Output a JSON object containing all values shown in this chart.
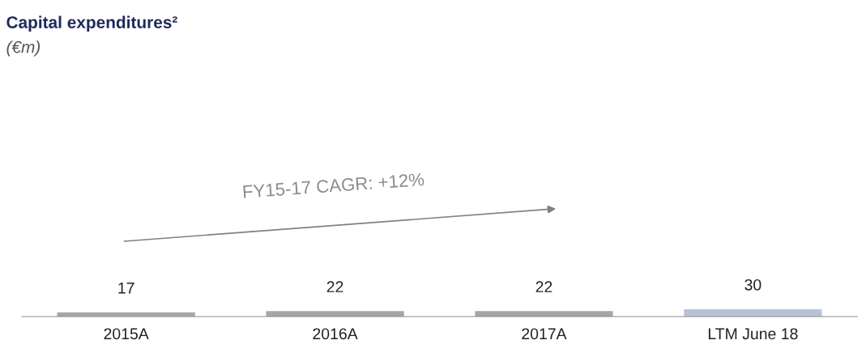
{
  "chart_data": {
    "type": "bar",
    "title": "Capital expenditures²",
    "subtitle": "(€m)",
    "categories": [
      "2015A",
      "2016A",
      "2017A",
      "LTM June 18"
    ],
    "values": [
      17,
      22,
      22,
      30
    ],
    "colors": [
      "#a6a6a6",
      "#a6a6a6",
      "#a6a6a6",
      "#b8c2d9"
    ],
    "data_labels": true,
    "annotations": [
      "FY15-17 CAGR: +12%"
    ]
  }
}
